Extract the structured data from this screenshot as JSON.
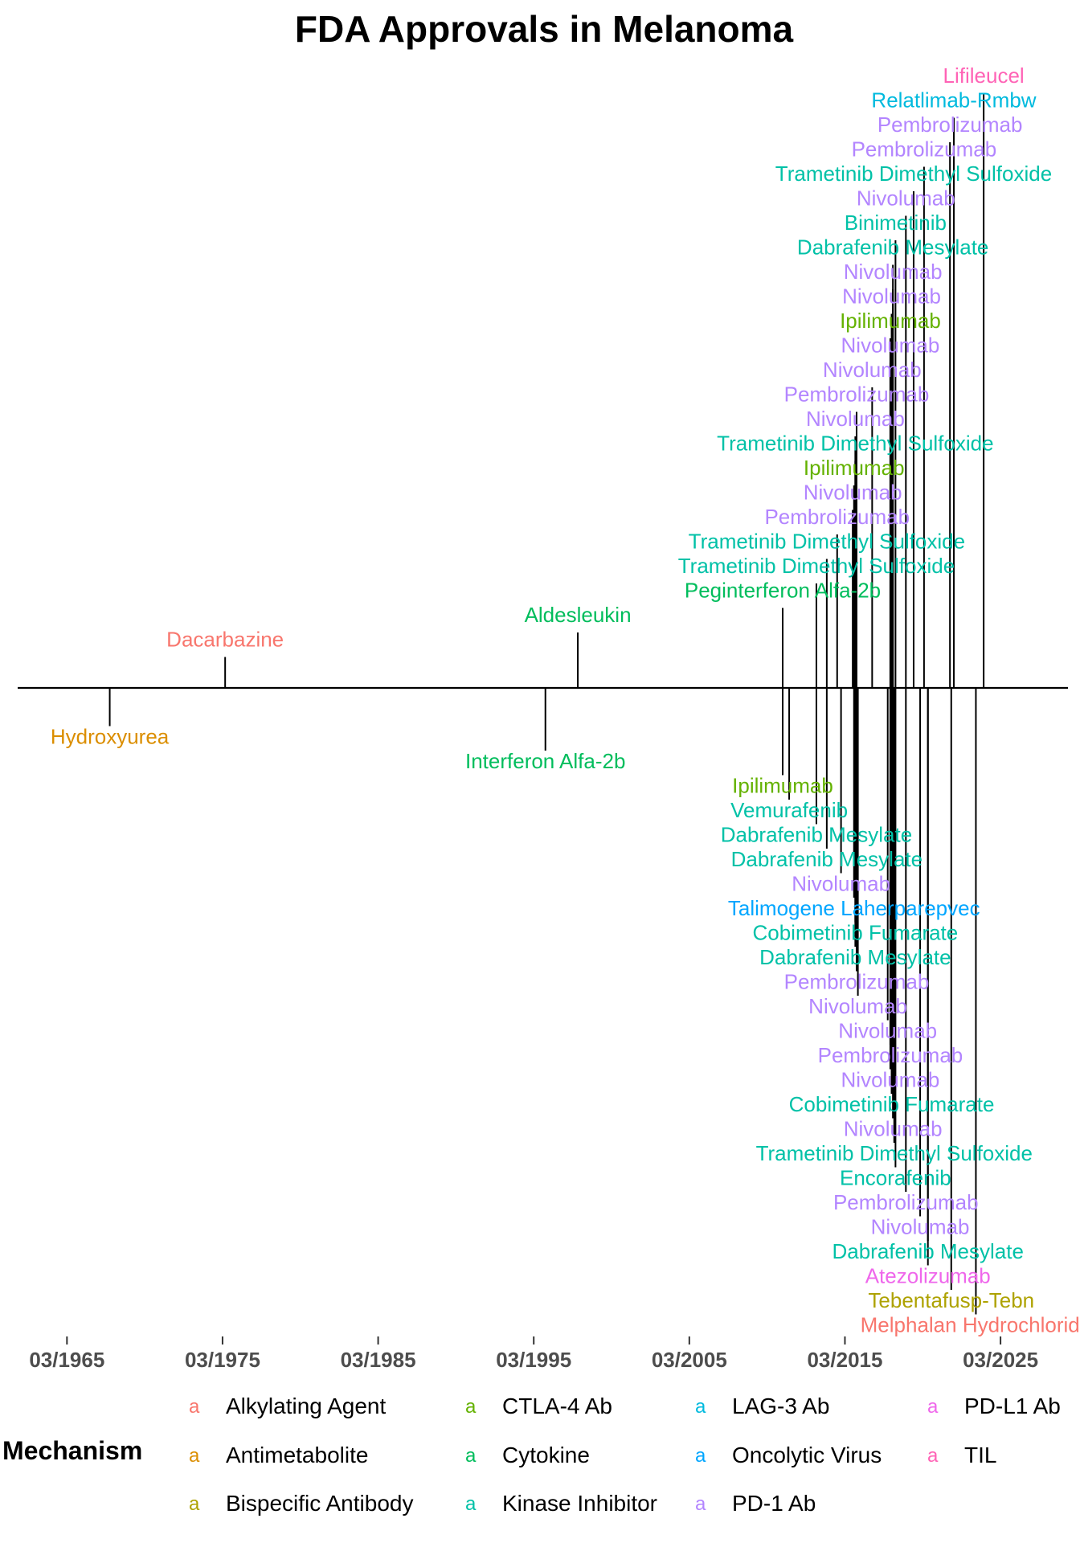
{
  "chart_data": {
    "type": "timeline",
    "title": "FDA Approvals in Melanoma",
    "x_ticks": [
      "03/1965",
      "03/1975",
      "03/1985",
      "03/1995",
      "03/2005",
      "03/2015",
      "03/2025"
    ],
    "xlim": [
      1962.0,
      2029.5
    ],
    "grid": false,
    "legend": {
      "title": "Mechanism",
      "placement": "bottom",
      "key_glyph": "a",
      "items": [
        {
          "name": "Alkylating Agent",
          "color": "#F8766D"
        },
        {
          "name": "Antimetabolite",
          "color": "#DB8E00"
        },
        {
          "name": "Bispecific Antibody",
          "color": "#AEA200"
        },
        {
          "name": "CTLA-4 Ab",
          "color": "#64B200"
        },
        {
          "name": "Cytokine",
          "color": "#00BD5C"
        },
        {
          "name": "Kinase Inhibitor",
          "color": "#00C1A7"
        },
        {
          "name": "LAG-3 Ab",
          "color": "#00BADE"
        },
        {
          "name": "Oncolytic Virus",
          "color": "#00A6FF"
        },
        {
          "name": "PD-1 Ab",
          "color": "#B385FF"
        },
        {
          "name": "PD-L1 Ab",
          "color": "#EF67EB"
        },
        {
          "name": "TIL",
          "color": "#FF63B6"
        }
      ]
    },
    "events": [
      {
        "drug": "Hydroxyurea",
        "date": "1967-12",
        "mechanism": "Antimetabolite",
        "level": -1
      },
      {
        "drug": "Dacarbazine",
        "date": "1975-05",
        "mechanism": "Alkylating Agent",
        "level": 1
      },
      {
        "drug": "Interferon Alfa-2b",
        "date": "1995-12",
        "mechanism": "Cytokine",
        "level": -2
      },
      {
        "drug": "Aldesleukin",
        "date": "1998-01",
        "mechanism": "Cytokine",
        "level": 2
      },
      {
        "drug": "Peginterferon Alfa-2b",
        "date": "2011-03",
        "mechanism": "Cytokine",
        "level": 3
      },
      {
        "drug": "Ipilimumab",
        "date": "2011-03",
        "mechanism": "CTLA-4 Ab",
        "level": -3
      },
      {
        "drug": "Vemurafenib",
        "date": "2011-08",
        "mechanism": "Kinase Inhibitor",
        "level": -4
      },
      {
        "drug": "Trametinib Dimethyl Sulfoxide",
        "date": "2013-05",
        "mechanism": "Kinase Inhibitor",
        "level": 4
      },
      {
        "drug": "Dabrafenib Mesylate",
        "date": "2013-05",
        "mechanism": "Kinase Inhibitor",
        "level": -5
      },
      {
        "drug": "Trametinib Dimethyl Sulfoxide",
        "date": "2014-01",
        "mechanism": "Kinase Inhibitor",
        "level": 5
      },
      {
        "drug": "Dabrafenib Mesylate",
        "date": "2014-01",
        "mechanism": "Kinase Inhibitor",
        "level": -6
      },
      {
        "drug": "Pembrolizumab",
        "date": "2014-09",
        "mechanism": "PD-1 Ab",
        "level": 6
      },
      {
        "drug": "Nivolumab",
        "date": "2014-12",
        "mechanism": "PD-1 Ab",
        "level": -7
      },
      {
        "drug": "Nivolumab",
        "date": "2015-09",
        "mechanism": "PD-1 Ab",
        "level": 7
      },
      {
        "drug": "Talimogene Laherparepvec",
        "date": "2015-10",
        "mechanism": "Oncolytic Virus",
        "level": -8
      },
      {
        "drug": "Ipilimumab",
        "date": "2015-10",
        "mechanism": "CTLA-4 Ab",
        "level": 8
      },
      {
        "drug": "Cobimetinib Fumarate",
        "date": "2015-11",
        "mechanism": "Kinase Inhibitor",
        "level": -9
      },
      {
        "drug": "Trametinib Dimethyl Sulfoxide",
        "date": "2015-11",
        "mechanism": "Kinase Inhibitor",
        "level": 9
      },
      {
        "drug": "Dabrafenib Mesylate",
        "date": "2015-11",
        "mechanism": "Kinase Inhibitor",
        "level": -10
      },
      {
        "drug": "Nivolumab",
        "date": "2015-11",
        "mechanism": "PD-1 Ab",
        "level": 10
      },
      {
        "drug": "Pembrolizumab",
        "date": "2015-12",
        "mechanism": "PD-1 Ab",
        "level": -11
      },
      {
        "drug": "Pembrolizumab",
        "date": "2015-12",
        "mechanism": "PD-1 Ab",
        "level": 11
      },
      {
        "drug": "Nivolumab",
        "date": "2016-01",
        "mechanism": "PD-1 Ab",
        "level": -12
      },
      {
        "drug": "Nivolumab",
        "date": "2016-12",
        "mechanism": "PD-1 Ab",
        "level": 12
      },
      {
        "drug": "Nivolumab",
        "date": "2017-12",
        "mechanism": "PD-1 Ab",
        "level": -13
      },
      {
        "drug": "Nivolumab",
        "date": "2018-02",
        "mechanism": "PD-1 Ab",
        "level": 13
      },
      {
        "drug": "Ipilimumab",
        "date": "2018-02",
        "mechanism": "CTLA-4 Ab",
        "level": 14
      },
      {
        "drug": "Pembrolizumab",
        "date": "2018-02",
        "mechanism": "PD-1 Ab",
        "level": -14
      },
      {
        "drug": "Nivolumab",
        "date": "2018-02",
        "mechanism": "PD-1 Ab",
        "level": -15
      },
      {
        "drug": "Nivolumab",
        "date": "2018-03",
        "mechanism": "PD-1 Ab",
        "level": 15
      },
      {
        "drug": "Cobimetinib Fumarate",
        "date": "2018-03",
        "mechanism": "Kinase Inhibitor",
        "level": -16
      },
      {
        "drug": "Nivolumab",
        "date": "2018-04",
        "mechanism": "PD-1 Ab",
        "level": 16
      },
      {
        "drug": "Nivolumab",
        "date": "2018-04",
        "mechanism": "PD-1 Ab",
        "level": -17
      },
      {
        "drug": "Dabrafenib Mesylate",
        "date": "2018-04",
        "mechanism": "Kinase Inhibitor",
        "level": 17
      },
      {
        "drug": "Trametinib Dimethyl Sulfoxide",
        "date": "2018-05",
        "mechanism": "Kinase Inhibitor",
        "level": -18
      },
      {
        "drug": "Binimetinib",
        "date": "2018-06",
        "mechanism": "Kinase Inhibitor",
        "level": 18
      },
      {
        "drug": "Encorafenib",
        "date": "2018-06",
        "mechanism": "Kinase Inhibitor",
        "level": -19
      },
      {
        "drug": "Nivolumab",
        "date": "2019-02",
        "mechanism": "PD-1 Ab",
        "level": 19
      },
      {
        "drug": "Pembrolizumab",
        "date": "2019-02",
        "mechanism": "PD-1 Ab",
        "level": -20
      },
      {
        "drug": "Trametinib Dimethyl Sulfoxide",
        "date": "2019-08",
        "mechanism": "Kinase Inhibitor",
        "level": 20
      },
      {
        "drug": "Nivolumab",
        "date": "2020-01",
        "mechanism": "PD-1 Ab",
        "level": -21
      },
      {
        "drug": "Pembrolizumab",
        "date": "2020-04",
        "mechanism": "PD-1 Ab",
        "level": 21
      },
      {
        "drug": "Dabrafenib Mesylate",
        "date": "2020-07",
        "mechanism": "Kinase Inhibitor",
        "level": -22
      },
      {
        "drug": "Atezolizumab",
        "date": "2020-07",
        "mechanism": "PD-L1 Ab",
        "level": -23
      },
      {
        "drug": "Pembrolizumab",
        "date": "2021-12",
        "mechanism": "PD-1 Ab",
        "level": 22
      },
      {
        "drug": "Tebentafusp-Tebn",
        "date": "2022-01",
        "mechanism": "Bispecific Antibody",
        "level": -24
      },
      {
        "drug": "Relatlimab-Rmbw",
        "date": "2022-03",
        "mechanism": "LAG-3 Ab",
        "level": 23
      },
      {
        "drug": "Melphalan Hydrochloride",
        "date": "2023-08",
        "mechanism": "Alkylating Agent",
        "level": -25
      },
      {
        "drug": "Lifileucel",
        "date": "2024-02",
        "mechanism": "TIL",
        "level": 24
      }
    ]
  }
}
